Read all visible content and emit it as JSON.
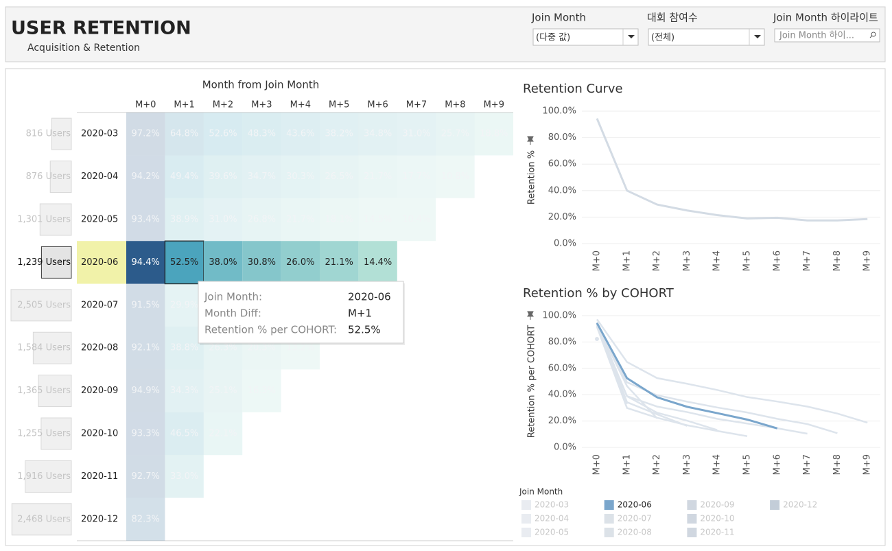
{
  "header": {
    "title": "USER RETENTION",
    "subtitle": "Acquisition & Retention"
  },
  "filters": [
    {
      "label": "Join Month",
      "value": "(다중 값)"
    },
    {
      "label": "대회 참여수",
      "value": "(전체)"
    },
    {
      "label": "Join Month 하이라이트",
      "placeholder": "Join Month 하이..."
    }
  ],
  "heatmap": {
    "title": "Month from Join Month",
    "columns": [
      "M+0",
      "M+1",
      "M+2",
      "M+3",
      "M+4",
      "M+5",
      "M+6",
      "M+7",
      "M+8",
      "M+9"
    ],
    "selected": "2020-06",
    "selected_column": "M+1",
    "color_stops": [
      "#b3e1d6",
      "#4ba5be",
      "#2c5a8a"
    ],
    "rows": [
      {
        "month": "2020-03",
        "users": 816,
        "users_label": "816 Users",
        "values": [
          97.2,
          64.8,
          52.6,
          48.3,
          43.6,
          38.2,
          34.8,
          31.0,
          25.7,
          18.8
        ],
        "value_labels": [
          "97.2%",
          "64.8%",
          "52.6%",
          "48.3%",
          "43.6%",
          "38.2%",
          "34.8%",
          "31.0%",
          "25.7%",
          "18.8%"
        ]
      },
      {
        "month": "2020-04",
        "users": 876,
        "users_label": "876 Users",
        "values": [
          94.2,
          49.4,
          39.6,
          34.7,
          30.3,
          26.5,
          21.7,
          17.7,
          10.8
        ],
        "value_labels": [
          "94.2%",
          "49.4%",
          "39.6%",
          "34.7%",
          "30.3%",
          "26.5%",
          "21.7%",
          "17.7%",
          "10.8%"
        ]
      },
      {
        "month": "2020-05",
        "users": 1301,
        "users_label": "1,301 Users",
        "values": [
          93.4,
          38.9,
          31.0,
          26.8,
          21.7,
          18.1,
          14.5,
          10.4
        ],
        "value_labels": [
          "93.4%",
          "38.9%",
          "31.0%",
          "26.8%",
          "21.7%",
          "18.1%",
          "14.5%",
          "10.4%"
        ]
      },
      {
        "month": "2020-06",
        "users": 1239,
        "users_label": "1,239 Users",
        "values": [
          94.4,
          52.5,
          38.0,
          30.8,
          26.0,
          21.1,
          14.4
        ],
        "value_labels": [
          "94.4%",
          "52.5%",
          "38.0%",
          "30.8%",
          "26.0%",
          "21.1%",
          "14.4%"
        ]
      },
      {
        "month": "2020-07",
        "users": 2505,
        "users_label": "2,505 Users",
        "values": [
          91.5,
          29.9,
          22.5,
          16.8,
          12.5,
          8.5
        ],
        "value_labels": [
          "91.5%",
          "29.9%",
          "22.5%",
          "16.8%",
          "12.5%",
          "8.5%"
        ]
      },
      {
        "month": "2020-08",
        "users": 1584,
        "users_label": "1,584 Users",
        "values": [
          92.1,
          38.8,
          26.3,
          20.3,
          13.2
        ],
        "value_labels": [
          "92.1%",
          "38.8%",
          "26.3%",
          "20.3%",
          "13.2%"
        ]
      },
      {
        "month": "2020-09",
        "users": 1365,
        "users_label": "1,365 Users",
        "values": [
          94.9,
          34.3,
          25.1,
          16.3
        ],
        "value_labels": [
          "94.9%",
          "34.3%",
          "25.1%",
          "16.3%"
        ]
      },
      {
        "month": "2020-10",
        "users": 1255,
        "users_label": "1,255 Users",
        "values": [
          93.3,
          46.5,
          22.1
        ],
        "value_labels": [
          "93.3%",
          "46.5%",
          "22.1%"
        ]
      },
      {
        "month": "2020-11",
        "users": 1916,
        "users_label": "1,916 Users",
        "values": [
          92.7,
          33.0
        ],
        "value_labels": [
          "92.7%",
          "33.0%"
        ]
      },
      {
        "month": "2020-12",
        "users": 2468,
        "users_label": "2,468 Users",
        "values": [
          82.3
        ],
        "value_labels": [
          "82.3%"
        ]
      }
    ]
  },
  "tooltip": {
    "rows": [
      {
        "label": "Join Month:",
        "value": "2020-06"
      },
      {
        "label": "Month Diff:",
        "value": "M+1"
      },
      {
        "label": "Retention % per COHORT:",
        "value": "52.5%"
      }
    ]
  },
  "chart_data": [
    {
      "type": "line",
      "title": "Retention Curve",
      "y_label": "Retention %",
      "categories": [
        "M+0",
        "M+1",
        "M+2",
        "M+3",
        "M+4",
        "M+5",
        "M+6",
        "M+7",
        "M+8",
        "M+9"
      ],
      "values": [
        94.5,
        40.0,
        29.5,
        25.0,
        21.5,
        19.0,
        19.5,
        17.5,
        17.5,
        18.5
      ],
      "color": "#d3dbe4",
      "grid": true,
      "ylim": [
        0,
        100
      ],
      "yticks": [
        {
          "value": 0,
          "label": "0.0%"
        },
        {
          "value": 20,
          "label": "20.0%"
        },
        {
          "value": 40,
          "label": "40.0%"
        },
        {
          "value": 60,
          "label": "60.0%"
        },
        {
          "value": 80,
          "label": "80.0%"
        },
        {
          "value": 100,
          "label": "100.0%"
        }
      ]
    },
    {
      "type": "line",
      "title": "Retention % by COHORT",
      "y_label": "Retention % per COHORT",
      "categories": [
        "M+0",
        "M+1",
        "M+2",
        "M+3",
        "M+4",
        "M+5",
        "M+6",
        "M+7",
        "M+8",
        "M+9"
      ],
      "color": "#dde4ec",
      "highlight_color": "#7aa6cc",
      "grid": true,
      "legend_title": "Join Month",
      "ylim": [
        0,
        100
      ],
      "yticks": [
        {
          "value": 0,
          "label": "0.0%"
        },
        {
          "value": 20,
          "label": "20.0%"
        },
        {
          "value": 40,
          "label": "40.0%"
        },
        {
          "value": 60,
          "label": "60.0%"
        },
        {
          "value": 80,
          "label": "80.0%"
        },
        {
          "value": 100,
          "label": "100.0%"
        }
      ]
    }
  ]
}
